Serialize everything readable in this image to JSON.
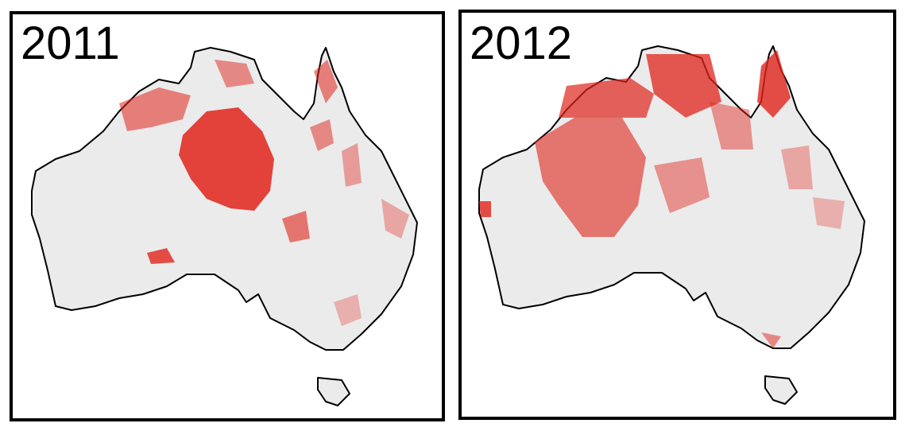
{
  "panels": [
    {
      "title": "2011"
    },
    {
      "title": "2012"
    }
  ]
}
